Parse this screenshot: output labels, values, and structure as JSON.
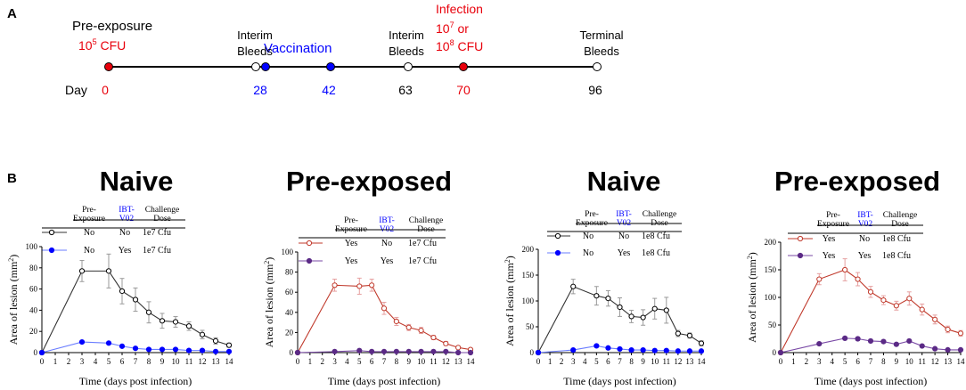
{
  "panel_labels": {
    "a": "A",
    "b": "B"
  },
  "timeline": {
    "day_label": "Day",
    "events": [
      {
        "day": "0",
        "day_color": "#e8000b",
        "dot_fill": "#e8000b",
        "label_lines": [],
        "label_color": "#e8000b"
      },
      {
        "day": "28",
        "day_color": "#0000ff",
        "dot_fill": "#ffffff",
        "label_lines": [
          "Interim",
          "Bleeds"
        ],
        "label_color": "#000000"
      },
      {
        "day": "",
        "day_color": "#0000ff",
        "dot_fill": "#0000ff",
        "label_lines": [],
        "label_color": "#0000ff"
      },
      {
        "day": "42",
        "day_color": "#0000ff",
        "dot_fill": "#0000ff",
        "label_lines": [],
        "label_color": "#0000ff"
      },
      {
        "day": "63",
        "day_color": "#000000",
        "dot_fill": "#ffffff",
        "label_lines": [
          "Interim",
          "Bleeds"
        ],
        "label_color": "#000000"
      },
      {
        "day": "70",
        "day_color": "#e8000b",
        "dot_fill": "#e8000b",
        "label_lines": [],
        "label_color": "#e8000b"
      },
      {
        "day": "96",
        "day_color": "#000000",
        "dot_fill": "#ffffff",
        "label_lines": [
          "Terminal",
          "Bleeds"
        ],
        "label_color": "#000000"
      }
    ],
    "pre_exposure": {
      "title": "Pre-exposure",
      "dose_base": "10",
      "dose_exp": "5",
      "dose_unit": " CFU"
    },
    "vaccination": "Vaccination",
    "infection": {
      "title": "Infection",
      "line1_base": "10",
      "line1_exp": "7",
      "line1_suffix": " or",
      "line2_base": "10",
      "line2_exp": "8",
      "line2_suffix": " CFU"
    }
  },
  "colors": {
    "black": "#000000",
    "red": "#c0392b",
    "blue": "#0000ff",
    "purple": "#5b2a86",
    "orange_red": "#e8000b",
    "grey_error": "#9a9a9a",
    "pink_error": "#e6a0a0",
    "blue_error": "#9fb4ff"
  },
  "chart_data": [
    {
      "type": "line",
      "title": "Naive",
      "xlabel": "Time (days post infection)",
      "ylabel": "Area of lesion (mm",
      "ylabel_sup": "2",
      "ylabel_close": ")",
      "xlim": [
        0,
        14
      ],
      "ylim": [
        0,
        100
      ],
      "yticks": [
        0,
        20,
        40,
        60,
        80,
        100
      ],
      "xticks": [
        0,
        1,
        2,
        3,
        4,
        5,
        6,
        7,
        8,
        9,
        10,
        11,
        12,
        13,
        14
      ],
      "table": {
        "headers": [
          [
            "Pre-",
            "Exposure"
          ],
          [
            "IBT-",
            "V02"
          ],
          [
            "Challenge",
            "Dose"
          ]
        ],
        "rows": [
          [
            "No",
            "No",
            "1e7 Cfu"
          ],
          [
            "No",
            "Yes",
            "1e7 Cfu"
          ]
        ]
      },
      "series": [
        {
          "name": "Pre-Exposure No / IBT-V02 No / 1e7 Cfu",
          "marker": "open",
          "color": "#000000",
          "line_color": "#333333",
          "err_color": "#9a9a9a",
          "x": [
            0,
            3,
            5,
            6,
            7,
            8,
            9,
            10,
            11,
            12,
            13,
            14
          ],
          "values": [
            0,
            77,
            77,
            58,
            50,
            38,
            30,
            29,
            25,
            17,
            11,
            7
          ],
          "errors": [
            0,
            10,
            16,
            12,
            11,
            10,
            7,
            5,
            4,
            4,
            3,
            2
          ]
        },
        {
          "name": "Pre-Exposure No / IBT-V02 Yes / 1e7 Cfu",
          "marker": "filled",
          "color": "#0000ff",
          "line_color": "#6a7dff",
          "err_color": "#9fb4ff",
          "x": [
            0,
            3,
            5,
            6,
            7,
            8,
            9,
            10,
            11,
            12,
            13,
            14
          ],
          "values": [
            0,
            10,
            9,
            6,
            4,
            3,
            3,
            3,
            2,
            2,
            1,
            1
          ],
          "errors": [
            0,
            1,
            1,
            1,
            1,
            1,
            0,
            0,
            0,
            0,
            0,
            0
          ]
        }
      ]
    },
    {
      "type": "line",
      "title": "Pre-exposed",
      "xlabel": "Time (days post infection)",
      "ylabel": "Area of lesion (mm",
      "ylabel_sup": "2",
      "ylabel_close": ")",
      "xlim": [
        0,
        14
      ],
      "ylim": [
        0,
        100
      ],
      "yticks": [
        0,
        20,
        40,
        60,
        80,
        100
      ],
      "xticks": [
        0,
        1,
        2,
        3,
        4,
        5,
        6,
        7,
        8,
        9,
        10,
        11,
        12,
        13,
        14
      ],
      "table": {
        "headers": [
          [
            "Pre-",
            "Exposure"
          ],
          [
            "IBT-",
            "V02"
          ],
          [
            "Challenge",
            "Dose"
          ]
        ],
        "rows": [
          [
            "Yes",
            "No",
            "1e7 Cfu"
          ],
          [
            "Yes",
            "Yes",
            "1e7 Cfu"
          ]
        ]
      },
      "series": [
        {
          "name": "Pre-Exposure Yes / IBT-V02 No / 1e7 Cfu",
          "marker": "open",
          "color": "#c0392b",
          "line_color": "#c0392b",
          "err_color": "#e6a0a0",
          "x": [
            0,
            3,
            5,
            6,
            7,
            8,
            9,
            10,
            11,
            12,
            13,
            14
          ],
          "values": [
            0,
            67,
            66,
            67,
            44,
            31,
            25,
            22,
            15,
            9,
            5,
            3
          ],
          "errors": [
            0,
            6,
            8,
            6,
            6,
            4,
            3,
            3,
            2,
            2,
            1,
            1
          ]
        },
        {
          "name": "Pre-Exposure Yes / IBT-V02 Yes / 1e7 Cfu",
          "marker": "filled",
          "color": "#5b2a86",
          "line_color": "#7a4aa6",
          "err_color": "#b39ad0",
          "x": [
            0,
            3,
            5,
            6,
            7,
            8,
            9,
            10,
            11,
            12,
            13,
            14
          ],
          "values": [
            0,
            1,
            2,
            1,
            1,
            1,
            1,
            1,
            1,
            1,
            0,
            0
          ],
          "errors": [
            0,
            0,
            0,
            0,
            0,
            0,
            0,
            0,
            0,
            0,
            0,
            0
          ]
        }
      ]
    },
    {
      "type": "line",
      "title": "Naive",
      "xlabel": "Time (days post infection)",
      "ylabel": "Area of lesion (mm",
      "ylabel_sup": "2",
      "ylabel_close": ")",
      "xlim": [
        0,
        14
      ],
      "ylim": [
        0,
        200
      ],
      "yticks": [
        0,
        50,
        100,
        150,
        200
      ],
      "xticks": [
        0,
        1,
        2,
        3,
        4,
        5,
        6,
        7,
        8,
        9,
        10,
        11,
        12,
        13,
        14
      ],
      "table": {
        "headers": [
          [
            "Pre-",
            "Exposure"
          ],
          [
            "IBT-",
            "V02"
          ],
          [
            "Challenge",
            "Dose"
          ]
        ],
        "rows": [
          [
            "No",
            "No",
            "1e8 Cfu"
          ],
          [
            "No",
            "Yes",
            "1e8 Cfu"
          ]
        ]
      },
      "series": [
        {
          "name": "Pre-Exposure No / IBT-V02 No / 1e8 Cfu",
          "marker": "open",
          "color": "#000000",
          "line_color": "#333333",
          "err_color": "#9a9a9a",
          "x": [
            0,
            3,
            5,
            6,
            7,
            8,
            9,
            10,
            11,
            12,
            13,
            14
          ],
          "values": [
            0,
            128,
            110,
            105,
            88,
            70,
            68,
            85,
            82,
            37,
            33,
            18
          ],
          "errors": [
            0,
            14,
            18,
            15,
            18,
            12,
            15,
            20,
            25,
            6,
            5,
            5
          ]
        },
        {
          "name": "Pre-Exposure No / IBT-V02 Yes / 1e8 Cfu",
          "marker": "filled",
          "color": "#0000ff",
          "line_color": "#6a7dff",
          "err_color": "#9fb4ff",
          "x": [
            0,
            3,
            5,
            6,
            7,
            8,
            9,
            10,
            11,
            12,
            13,
            14
          ],
          "values": [
            0,
            5,
            13,
            9,
            7,
            5,
            5,
            4,
            4,
            3,
            3,
            3
          ],
          "errors": [
            0,
            1,
            2,
            1,
            1,
            1,
            1,
            1,
            1,
            1,
            1,
            1
          ]
        }
      ]
    },
    {
      "type": "line",
      "title": "Pre-exposed",
      "xlabel": "Time (days post infection)",
      "ylabel": "Area of lesion (mm",
      "ylabel_sup": "2",
      "ylabel_close": ")",
      "xlim": [
        0,
        14
      ],
      "ylim": [
        0,
        200
      ],
      "yticks": [
        0,
        50,
        100,
        150,
        200
      ],
      "xticks": [
        0,
        1,
        2,
        3,
        4,
        5,
        6,
        7,
        8,
        9,
        10,
        11,
        12,
        13,
        14
      ],
      "table": {
        "headers": [
          [
            "Pre-",
            "Exposure"
          ],
          [
            "IBT-",
            "V02"
          ],
          [
            "Challenge",
            "Dose"
          ]
        ],
        "rows": [
          [
            "Yes",
            "No",
            "1e8 Cfu"
          ],
          [
            "Yes",
            "Yes",
            "1e8 Cfu"
          ]
        ]
      },
      "series": [
        {
          "name": "Pre-Exposure Yes / IBT-V02 No / 1e8 Cfu",
          "marker": "open",
          "color": "#c0392b",
          "line_color": "#c0392b",
          "err_color": "#e6a0a0",
          "x": [
            0,
            3,
            5,
            6,
            7,
            8,
            9,
            10,
            11,
            12,
            13,
            14
          ],
          "values": [
            0,
            133,
            150,
            133,
            110,
            95,
            85,
            98,
            78,
            60,
            42,
            35
          ],
          "errors": [
            0,
            10,
            20,
            12,
            10,
            8,
            8,
            12,
            10,
            8,
            6,
            5
          ]
        },
        {
          "name": "Pre-Exposure Yes / IBT-V02 Yes / 1e8 Cfu",
          "marker": "filled",
          "color": "#5b2a86",
          "line_color": "#7a4aa6",
          "err_color": "#b39ad0",
          "x": [
            0,
            3,
            5,
            6,
            7,
            8,
            9,
            10,
            11,
            12,
            13,
            14
          ],
          "values": [
            0,
            16,
            26,
            25,
            21,
            20,
            15,
            21,
            12,
            7,
            5,
            5
          ],
          "errors": [
            0,
            2,
            3,
            3,
            3,
            2,
            2,
            3,
            2,
            1,
            1,
            1
          ]
        }
      ]
    }
  ]
}
